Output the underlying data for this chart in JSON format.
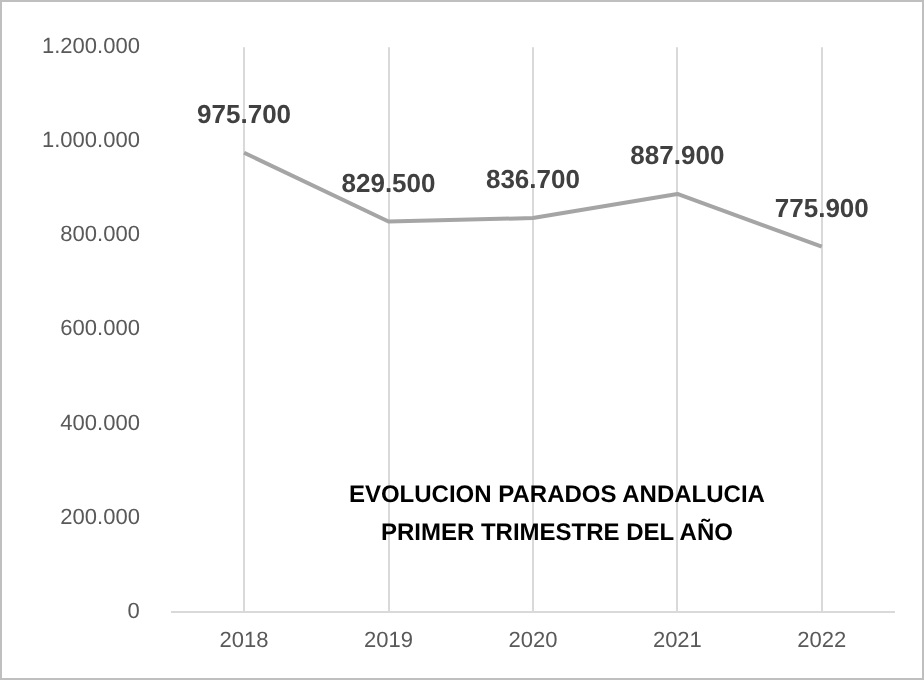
{
  "chart_data": {
    "type": "line",
    "title": "EVOLUCION PARADOS ANDALUCIA\nPRIMER TRIMESTRE DEL AÑO",
    "categories": [
      "2018",
      "2019",
      "2020",
      "2021",
      "2022"
    ],
    "series": [
      {
        "color": "#a5a5a5",
        "values": [
          975700,
          829500,
          836700,
          887900,
          775900
        ],
        "value_labels": [
          "975.700",
          "829.500",
          "836.700",
          "887.900",
          "775.900"
        ]
      }
    ],
    "ylim": [
      0,
      1200000
    ],
    "yticks": [
      {
        "value": 0,
        "label": "0"
      },
      {
        "value": 200000,
        "label": "200.000"
      },
      {
        "value": 400000,
        "label": "400.000"
      },
      {
        "value": 600000,
        "label": "600.000"
      },
      {
        "value": 800000,
        "label": "800.000"
      },
      {
        "value": 1000000,
        "label": "1.000.000"
      },
      {
        "value": 1200000,
        "label": "1.200.000"
      }
    ],
    "grid": "x",
    "legend": false,
    "marker": "none",
    "line_style": "solid"
  }
}
